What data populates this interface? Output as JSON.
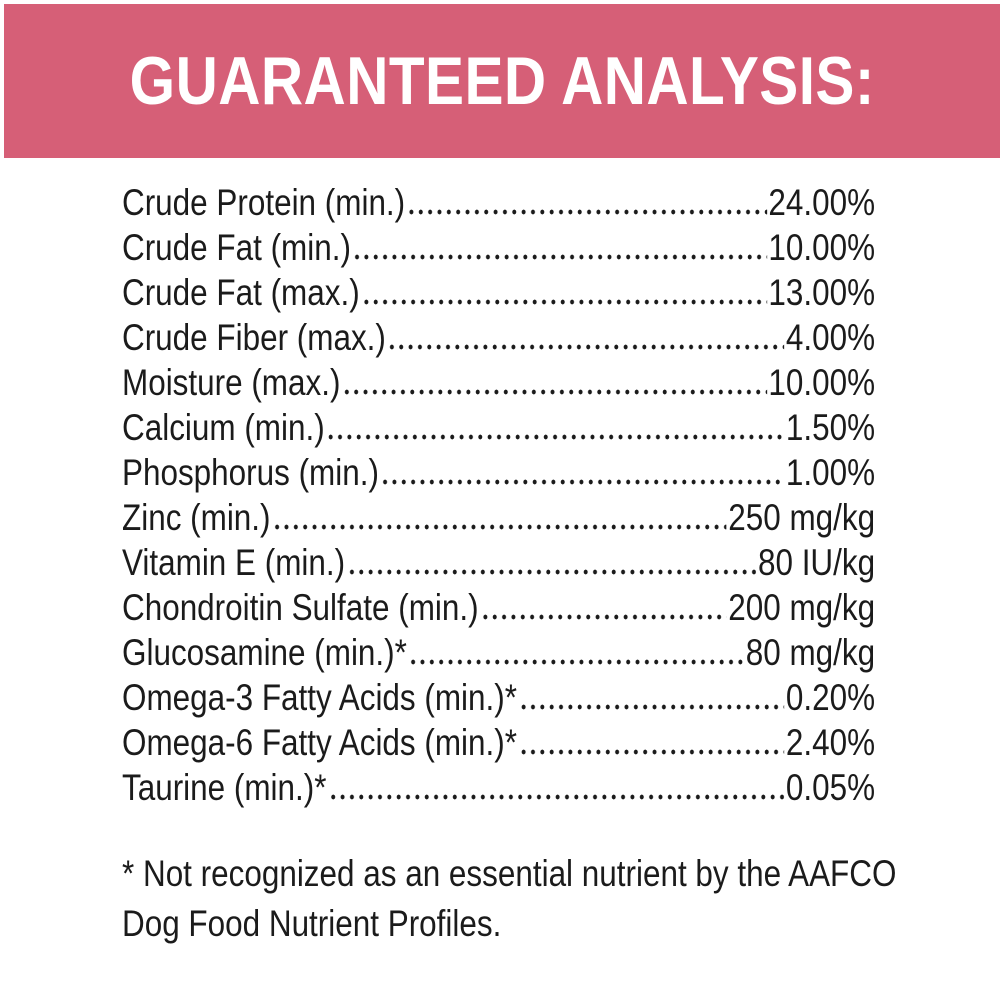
{
  "header": {
    "title": "GUARANTEED ANALYSIS:"
  },
  "analysis": {
    "rows": [
      {
        "name": "Crude Protein (min.)",
        "value": "24.00%"
      },
      {
        "name": "Crude Fat (min.)",
        "value": "10.00%"
      },
      {
        "name": "Crude Fat (max.)",
        "value": "13.00%"
      },
      {
        "name": "Crude Fiber (max.)",
        "value": "4.00%"
      },
      {
        "name": "Moisture (max.)",
        "value": "10.00%"
      },
      {
        "name": "Calcium (min.)",
        "value": "1.50%"
      },
      {
        "name": "Phosphorus (min.)",
        "value": "1.00%"
      },
      {
        "name": "Zinc (min.)",
        "value": "250 mg/kg"
      },
      {
        "name": "Vitamin E (min.)",
        "value": "80 IU/kg"
      },
      {
        "name": "Chondroitin Sulfate (min.)",
        "value": "200 mg/kg"
      },
      {
        "name": "Glucosamine (min.)*",
        "value": "80 mg/kg"
      },
      {
        "name": "Omega-3 Fatty Acids (min.)*",
        "value": "0.20%"
      },
      {
        "name": "Omega-6 Fatty Acids (min.)*",
        "value": "2.40%"
      },
      {
        "name": "Taurine (min.)*",
        "value": "0.05%"
      }
    ]
  },
  "footnote": {
    "lines": [
      "* Not recognized as an essential nutrient by the AAFCO",
      "Dog Food Nutrient Profiles."
    ]
  },
  "colors": {
    "accent": "#D65F77",
    "text": "#1B1B1B",
    "background": "#FFFFFF"
  }
}
